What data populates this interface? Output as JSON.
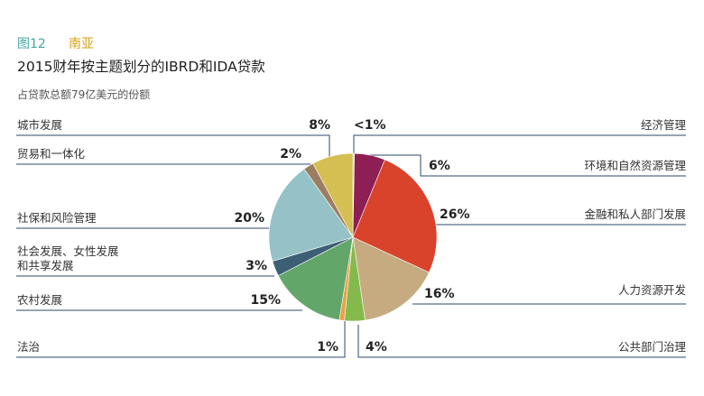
{
  "figure": {
    "number": "图12",
    "region": "南亚"
  },
  "title": "2015财年按主题划分的IBRD和IDA贷款",
  "subtitle": "占贷款总额79亿美元的份额",
  "colors": {
    "title_number": "#4aa3a3",
    "title_region": "#d4a21a",
    "leader_line": "#2d4a6b"
  },
  "chart_data": {
    "type": "pie",
    "start_angle_deg": 0,
    "direction": "clockwise",
    "slices": [
      {
        "label": "经济管理",
        "pct_label": "<1%",
        "value": 0.3,
        "color": "#c9c9c9"
      },
      {
        "label": "环境和自然资源管理",
        "pct_label": "6%",
        "value": 6,
        "color": "#8e1f55"
      },
      {
        "label": "金融和私人部门发展",
        "pct_label": "26%",
        "value": 26,
        "color": "#d9432b"
      },
      {
        "label": "人力资源开发",
        "pct_label": "16%",
        "value": 16,
        "color": "#c6ab80"
      },
      {
        "label": "公共部门治理",
        "pct_label": "4%",
        "value": 4,
        "color": "#84b94b"
      },
      {
        "label": "法治",
        "pct_label": "1%",
        "value": 1,
        "color": "#eda047"
      },
      {
        "label": "农村发展",
        "pct_label": "15%",
        "value": 15,
        "color": "#62a66a"
      },
      {
        "label": "社会发展、女性发展和共享发展",
        "label_line1": "社会发展、女性发展",
        "label_line2": "和共享发展",
        "pct_label": "3%",
        "value": 3,
        "color": "#3d5f75"
      },
      {
        "label": "社保和风险管理",
        "pct_label": "20%",
        "value": 20,
        "color": "#95c2c6"
      },
      {
        "label": "贸易和一体化",
        "pct_label": "2%",
        "value": 2,
        "color": "#9b7e62"
      },
      {
        "label": "城市发展",
        "pct_label": "8%",
        "value": 8,
        "color": "#d6bf52"
      }
    ]
  }
}
